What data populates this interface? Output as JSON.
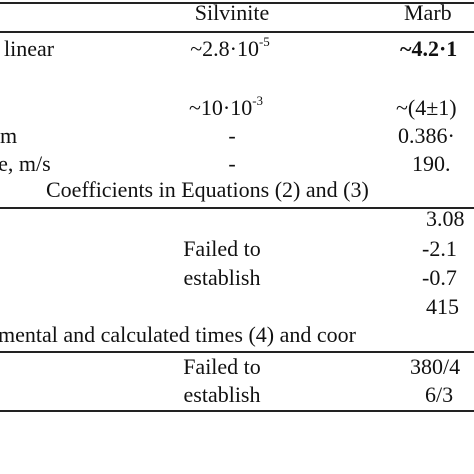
{
  "header": {
    "col_silvinite": "Silvinite",
    "col_marble": "Marb"
  },
  "rows": {
    "linear": {
      "label": "linear",
      "silvinite_base": "~2.8·10",
      "silvinite_exp": "-5",
      "marble_base": "~4.2·1"
    },
    "row2": {
      "silvinite_base": "~10·10",
      "silvinite_exp": "-3",
      "marble": "~(4±1)"
    },
    "row3": {
      "label": "m",
      "silvinite": "-",
      "marble": "0.386·"
    },
    "row4": {
      "label": "te, m/s",
      "silvinite": "-",
      "marble": "190."
    }
  },
  "section1": {
    "title": "Coefficients in Equations (2) and (3)",
    "silvinite_line1": "Failed to",
    "silvinite_line2": "establish",
    "marble_values": [
      "3.08",
      "-2.1",
      "-0.7",
      "415"
    ]
  },
  "section2": {
    "title": "mental and calculated times (4) and coor",
    "silvinite_line1": "Failed to",
    "silvinite_line2": "establish",
    "marble_values": [
      "380/4",
      "6/3"
    ]
  }
}
